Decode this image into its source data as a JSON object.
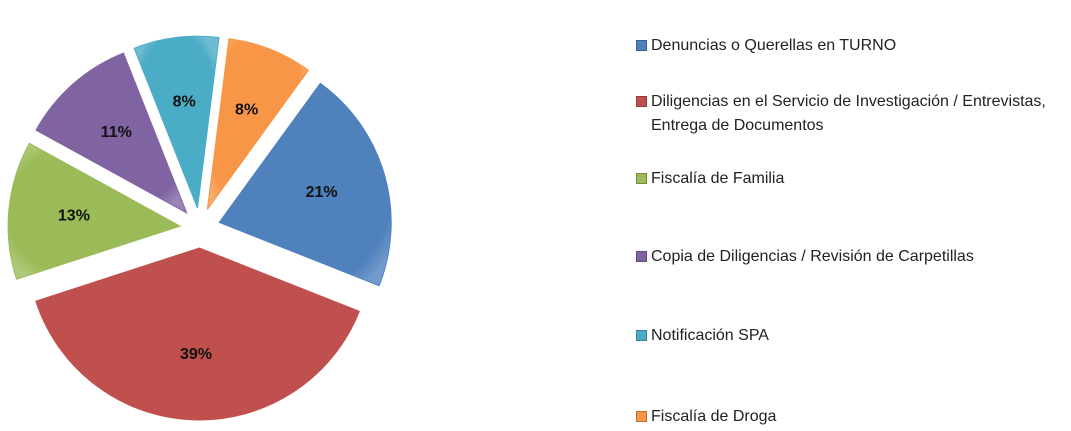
{
  "chart_data": {
    "type": "pie",
    "categories": [
      "Denuncias o Querellas en TURNO",
      "Diligencias en el Servicio de Investigación / Entrevistas, Entrega de Documentos",
      "Fiscalía de Familia",
      "Copia de Diligencias / Revisión de Carpetillas",
      "Notificación SPA",
      "Fiscalía de Droga"
    ],
    "values": [
      21,
      39,
      13,
      11,
      8,
      8
    ],
    "value_labels": [
      "21%",
      "39%",
      "13%",
      "11%",
      "8%",
      "8%"
    ],
    "colors": [
      "#4f81bd",
      "#c0504d",
      "#9bbb59",
      "#8064a2",
      "#4bacc6",
      "#f79646"
    ],
    "legend": "right"
  }
}
